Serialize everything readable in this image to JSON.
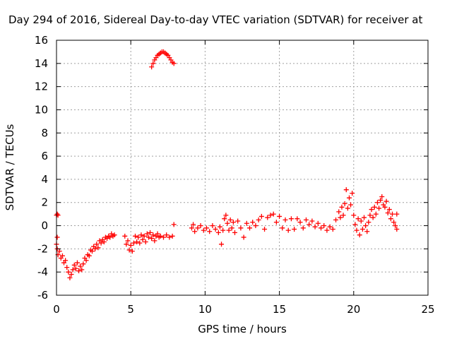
{
  "chart_data": {
    "type": "scatter",
    "title": "Day 294 of 2016, Sidereal Day-to-day VTEC variation (SDTVAR) for receiver at",
    "xlabel": "GPS time / hours",
    "ylabel": "SDTVAR / TECUs",
    "xlim": [
      0,
      25
    ],
    "ylim": [
      -6,
      16
    ],
    "xticks": [
      0,
      5,
      10,
      15,
      20,
      25
    ],
    "yticks": [
      -6,
      -4,
      -2,
      0,
      2,
      4,
      6,
      8,
      10,
      12,
      14,
      16
    ],
    "grid": true,
    "marker": "+",
    "colors": {
      "series": "#ff0000",
      "axis": "#000000",
      "grid": "#a0a0a0"
    },
    "series": [
      {
        "name": "SDTVAR",
        "points": [
          [
            0.0,
            0.9
          ],
          [
            0.05,
            1.0
          ],
          [
            0.1,
            0.9
          ],
          [
            0.05,
            -1.0
          ],
          [
            0.0,
            -1.6
          ],
          [
            0.05,
            -2.0
          ],
          [
            0.1,
            -2.5
          ],
          [
            0.2,
            -2.2
          ],
          [
            0.3,
            -2.8
          ],
          [
            0.4,
            -2.6
          ],
          [
            0.5,
            -3.2
          ],
          [
            0.6,
            -3.0
          ],
          [
            0.7,
            -3.6
          ],
          [
            0.8,
            -4.0
          ],
          [
            0.9,
            -4.5
          ],
          [
            1.0,
            -4.2
          ],
          [
            1.1,
            -3.8
          ],
          [
            1.2,
            -3.4
          ],
          [
            1.3,
            -3.7
          ],
          [
            1.4,
            -3.2
          ],
          [
            1.5,
            -3.9
          ],
          [
            1.6,
            -3.5
          ],
          [
            1.7,
            -3.8
          ],
          [
            1.8,
            -3.3
          ],
          [
            1.9,
            -2.8
          ],
          [
            2.0,
            -3.0
          ],
          [
            2.1,
            -2.5
          ],
          [
            2.2,
            -2.6
          ],
          [
            2.3,
            -2.1
          ],
          [
            2.4,
            -2.2
          ],
          [
            2.5,
            -1.8
          ],
          [
            2.6,
            -2.0
          ],
          [
            2.7,
            -1.6
          ],
          [
            2.8,
            -1.9
          ],
          [
            2.9,
            -1.3
          ],
          [
            3.0,
            -1.5
          ],
          [
            3.1,
            -1.2
          ],
          [
            3.2,
            -1.4
          ],
          [
            3.3,
            -1.0
          ],
          [
            3.4,
            -1.1
          ],
          [
            3.5,
            -0.9
          ],
          [
            3.6,
            -1.0
          ],
          [
            3.7,
            -0.7
          ],
          [
            3.8,
            -0.9
          ],
          [
            3.9,
            -0.8
          ],
          [
            4.6,
            -0.9
          ],
          [
            4.7,
            -1.6
          ],
          [
            4.8,
            -1.3
          ],
          [
            4.9,
            -2.1
          ],
          [
            5.0,
            -1.7
          ],
          [
            5.1,
            -2.2
          ],
          [
            5.2,
            -1.5
          ],
          [
            5.3,
            -0.9
          ],
          [
            5.4,
            -1.4
          ],
          [
            5.5,
            -1.0
          ],
          [
            5.6,
            -1.5
          ],
          [
            5.7,
            -0.8
          ],
          [
            5.8,
            -1.2
          ],
          [
            5.9,
            -0.9
          ],
          [
            6.0,
            -1.4
          ],
          [
            6.1,
            -0.7
          ],
          [
            6.2,
            -1.0
          ],
          [
            6.3,
            -0.6
          ],
          [
            6.4,
            -1.1
          ],
          [
            6.5,
            -0.8
          ],
          [
            6.6,
            -1.3
          ],
          [
            6.7,
            -0.9
          ],
          [
            6.8,
            -0.7
          ],
          [
            6.9,
            -1.0
          ],
          [
            7.0,
            -0.9
          ],
          [
            7.2,
            -1.0
          ],
          [
            7.4,
            -0.8
          ],
          [
            7.6,
            -1.0
          ],
          [
            7.8,
            -0.9
          ],
          [
            7.9,
            0.1
          ],
          [
            6.4,
            13.7
          ],
          [
            6.5,
            14.0
          ],
          [
            6.6,
            14.3
          ],
          [
            6.7,
            14.5
          ],
          [
            6.8,
            14.7
          ],
          [
            6.9,
            14.8
          ],
          [
            7.0,
            14.9
          ],
          [
            7.1,
            15.0
          ],
          [
            7.2,
            15.0
          ],
          [
            7.3,
            14.9
          ],
          [
            7.4,
            14.8
          ],
          [
            7.5,
            14.7
          ],
          [
            7.6,
            14.5
          ],
          [
            7.7,
            14.3
          ],
          [
            7.8,
            14.1
          ],
          [
            7.9,
            14.0
          ],
          [
            9.1,
            -0.2
          ],
          [
            9.2,
            0.1
          ],
          [
            9.3,
            -0.5
          ],
          [
            9.5,
            -0.2
          ],
          [
            9.7,
            0.0
          ],
          [
            9.9,
            -0.4
          ],
          [
            10.1,
            -0.2
          ],
          [
            10.3,
            -0.5
          ],
          [
            10.5,
            0.0
          ],
          [
            10.7,
            -0.3
          ],
          [
            10.9,
            -0.6
          ],
          [
            11.0,
            -0.1
          ],
          [
            11.1,
            -1.6
          ],
          [
            11.2,
            -0.4
          ],
          [
            11.3,
            0.6
          ],
          [
            11.4,
            0.9
          ],
          [
            11.5,
            0.2
          ],
          [
            11.6,
            -0.4
          ],
          [
            11.7,
            0.5
          ],
          [
            11.8,
            -0.2
          ],
          [
            11.9,
            0.3
          ],
          [
            12.0,
            -0.6
          ],
          [
            12.2,
            0.4
          ],
          [
            12.4,
            -0.2
          ],
          [
            12.6,
            -1.0
          ],
          [
            12.8,
            0.2
          ],
          [
            13.0,
            -0.2
          ],
          [
            13.2,
            0.3
          ],
          [
            13.4,
            0.0
          ],
          [
            13.6,
            0.5
          ],
          [
            13.8,
            0.8
          ],
          [
            14.0,
            -0.3
          ],
          [
            14.2,
            0.7
          ],
          [
            14.4,
            0.9
          ],
          [
            14.6,
            1.0
          ],
          [
            14.8,
            0.3
          ],
          [
            15.0,
            0.8
          ],
          [
            15.2,
            -0.2
          ],
          [
            15.4,
            0.5
          ],
          [
            15.6,
            -0.4
          ],
          [
            15.8,
            0.6
          ],
          [
            16.0,
            -0.3
          ],
          [
            16.2,
            0.6
          ],
          [
            16.4,
            0.3
          ],
          [
            16.6,
            -0.2
          ],
          [
            16.8,
            0.5
          ],
          [
            17.0,
            0.1
          ],
          [
            17.2,
            0.4
          ],
          [
            17.4,
            -0.1
          ],
          [
            17.6,
            0.2
          ],
          [
            17.8,
            -0.2
          ],
          [
            18.0,
            0.0
          ],
          [
            18.2,
            -0.4
          ],
          [
            18.4,
            -0.1
          ],
          [
            18.6,
            -0.3
          ],
          [
            18.8,
            0.5
          ],
          [
            19.0,
            1.2
          ],
          [
            19.1,
            0.7
          ],
          [
            19.2,
            1.6
          ],
          [
            19.3,
            0.9
          ],
          [
            19.4,
            1.9
          ],
          [
            19.5,
            3.1
          ],
          [
            19.6,
            1.5
          ],
          [
            19.7,
            2.4
          ],
          [
            19.8,
            1.8
          ],
          [
            19.9,
            2.8
          ],
          [
            20.0,
            0.9
          ],
          [
            20.1,
            0.1
          ],
          [
            20.2,
            -0.4
          ],
          [
            20.3,
            0.6
          ],
          [
            20.4,
            -0.8
          ],
          [
            20.5,
            0.4
          ],
          [
            20.6,
            -0.3
          ],
          [
            20.7,
            0.7
          ],
          [
            20.8,
            0.0
          ],
          [
            20.9,
            -0.5
          ],
          [
            21.0,
            0.3
          ],
          [
            21.1,
            0.9
          ],
          [
            21.2,
            1.4
          ],
          [
            21.3,
            0.7
          ],
          [
            21.4,
            1.6
          ],
          [
            21.5,
            1.0
          ],
          [
            21.6,
            2.0
          ],
          [
            21.7,
            1.5
          ],
          [
            21.8,
            2.2
          ],
          [
            21.9,
            2.5
          ],
          [
            22.0,
            1.8
          ],
          [
            22.1,
            1.6
          ],
          [
            22.2,
            2.1
          ],
          [
            22.3,
            1.1
          ],
          [
            22.4,
            1.4
          ],
          [
            22.5,
            0.6
          ],
          [
            22.6,
            1.0
          ],
          [
            22.7,
            0.3
          ],
          [
            22.8,
            0.0
          ],
          [
            22.9,
            1.0
          ],
          [
            22.9,
            -0.3
          ]
        ]
      }
    ]
  }
}
